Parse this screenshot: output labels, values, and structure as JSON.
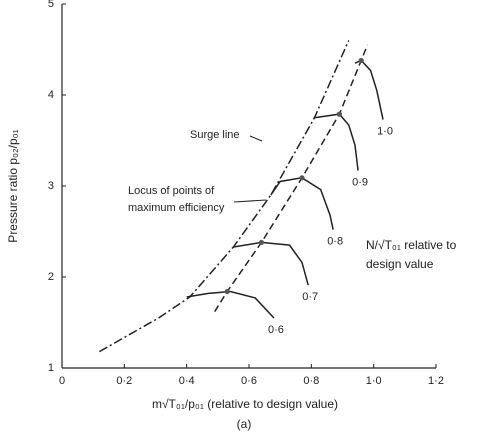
{
  "chart_data": {
    "type": "line",
    "xlabel": "m√T₀₁/p₀₁ (relative to design value)",
    "ylabel": "Pressure ratio p₀₂/p₀₁",
    "caption": "(a)",
    "annotations": [
      "Surge line",
      "Locus of points of",
      "maximum efficiency",
      "N/√T₀₁ relative to",
      "design value"
    ],
    "xlim": [
      0,
      1.2
    ],
    "ylim": [
      1,
      5
    ],
    "xticks": [
      0,
      {
        "value": 0.2,
        "label": "0·2"
      },
      {
        "value": 0.4,
        "label": "0·4"
      },
      {
        "value": 0.6,
        "label": "0·6"
      },
      {
        "value": 0.8,
        "label": "0·8"
      },
      {
        "value": 1.0,
        "label": "1·0"
      },
      {
        "value": 1.2,
        "label": "1·2"
      }
    ],
    "yticks": [
      1,
      2,
      3,
      4,
      5
    ],
    "grid": false,
    "series": [
      {
        "name": "0·6",
        "color": "#222222",
        "style": "solid",
        "x": [
          0.4,
          0.47,
          0.54,
          0.62,
          0.68
        ],
        "values": [
          1.78,
          1.82,
          1.84,
          1.77,
          1.55
        ]
      },
      {
        "name": "0·7",
        "color": "#222222",
        "style": "solid",
        "x": [
          0.55,
          0.64,
          0.73,
          0.77,
          0.79
        ],
        "values": [
          2.33,
          2.38,
          2.35,
          2.16,
          1.91
        ]
      },
      {
        "name": "0·8",
        "color": "#222222",
        "style": "solid",
        "x": [
          0.67,
          0.7,
          0.77,
          0.83,
          0.86,
          0.87
        ],
        "values": [
          2.9,
          3.05,
          3.09,
          2.96,
          2.68,
          2.52
        ]
      },
      {
        "name": "0·9",
        "color": "#222222",
        "style": "solid",
        "x": [
          0.81,
          0.89,
          0.92,
          0.94,
          0.95
        ],
        "values": [
          3.75,
          3.79,
          3.67,
          3.45,
          3.17
        ]
      },
      {
        "name": "1·0",
        "color": "#222222",
        "style": "solid",
        "x": [
          0.94,
          0.96,
          0.99,
          1.01,
          1.03
        ],
        "values": [
          4.35,
          4.38,
          4.27,
          4.05,
          3.73
        ]
      },
      {
        "color": "#222222",
        "style": "dash-dot",
        "x": [
          0.12,
          0.31,
          0.41,
          0.55,
          0.67,
          0.81,
          0.92
        ],
        "values": [
          1.18,
          1.55,
          1.78,
          2.33,
          2.9,
          3.75,
          4.6
        ]
      },
      {
        "color": "#222222",
        "style": "dashed",
        "x": [
          0.49,
          0.53,
          0.64,
          0.77,
          0.89,
          0.96,
          0.98
        ],
        "values": [
          1.62,
          1.84,
          2.38,
          3.09,
          3.79,
          4.38,
          4.55
        ]
      },
      {
        "color": "#555555",
        "style": "markers",
        "x": [
          0.53,
          0.64,
          0.77,
          0.89,
          0.96
        ],
        "values": [
          1.84,
          2.38,
          3.09,
          3.79,
          4.38
        ]
      }
    ]
  }
}
